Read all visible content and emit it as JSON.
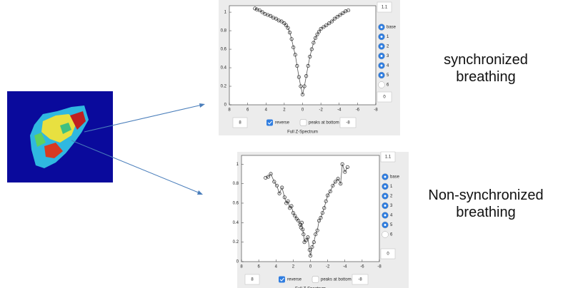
{
  "chart_data": [
    {
      "type": "line",
      "xlabel": "Full Z-Spectrum",
      "annotation": "synchronized breathing",
      "xlim": [
        8,
        -8
      ],
      "xticks": [
        8,
        6,
        4,
        2,
        0,
        -2,
        -4,
        -6,
        -8
      ],
      "ylim": [
        0,
        1.07
      ],
      "yticks": [
        0,
        0.2,
        0.4,
        0.6,
        0.8,
        1
      ],
      "color": "#555555",
      "x": [
        5.2,
        5.0,
        4.7,
        4.4,
        4.1,
        3.8,
        3.5,
        3.2,
        2.9,
        2.6,
        2.3,
        2.0,
        1.8,
        1.6,
        1.4,
        1.2,
        1.0,
        0.8,
        0.6,
        0.4,
        0.2,
        0,
        -0.2,
        -0.4,
        -0.6,
        -0.8,
        -1.0,
        -1.2,
        -1.4,
        -1.6,
        -1.8,
        -2.0,
        -2.3,
        -2.6,
        -2.9,
        -3.2,
        -3.5,
        -3.8,
        -4.1,
        -4.4,
        -4.7,
        -5.0
      ],
      "values": [
        1.04,
        1.03,
        1.02,
        1.0,
        0.98,
        0.97,
        0.96,
        0.94,
        0.93,
        0.91,
        0.9,
        0.88,
        0.86,
        0.83,
        0.78,
        0.71,
        0.62,
        0.54,
        0.42,
        0.3,
        0.2,
        0.11,
        0.2,
        0.31,
        0.42,
        0.52,
        0.6,
        0.67,
        0.72,
        0.76,
        0.79,
        0.82,
        0.84,
        0.86,
        0.88,
        0.9,
        0.93,
        0.95,
        0.97,
        0.99,
        1.01,
        1.02
      ]
    },
    {
      "type": "line",
      "xlabel": "Full Z-Spectrum",
      "annotation": "Non-synchronized breathing",
      "xlim": [
        8,
        -8
      ],
      "xticks": [
        8,
        6,
        4,
        2,
        0,
        -2,
        -4,
        -6,
        -8
      ],
      "ylim": [
        0,
        1.09
      ],
      "yticks": [
        0,
        0.2,
        0.4,
        0.6,
        0.8,
        1
      ],
      "color": "#555555",
      "x": [
        5.2,
        4.9,
        4.6,
        4.2,
        3.9,
        3.6,
        3.3,
        3.0,
        2.8,
        2.6,
        2.4,
        2.2,
        2.0,
        1.8,
        1.6,
        1.4,
        1.2,
        1.1,
        1.0,
        0.9,
        0.8,
        0.7,
        0.5,
        0.3,
        0.1,
        0,
        -0.2,
        -0.4,
        -0.6,
        -0.8,
        -1.0,
        -1.2,
        -1.4,
        -1.6,
        -1.8,
        -2.0,
        -2.3,
        -2.6,
        -2.9,
        -3.2,
        -3.5,
        -3.7,
        -4.0,
        -4.3
      ],
      "values": [
        0.86,
        0.87,
        0.9,
        0.82,
        0.78,
        0.7,
        0.76,
        0.66,
        0.6,
        0.62,
        0.55,
        0.57,
        0.5,
        0.47,
        0.44,
        0.42,
        0.38,
        0.35,
        0.4,
        0.33,
        0.28,
        0.2,
        0.22,
        0.25,
        0.12,
        0.06,
        0.15,
        0.2,
        0.28,
        0.32,
        0.42,
        0.45,
        0.5,
        0.55,
        0.62,
        0.68,
        0.72,
        0.78,
        0.82,
        0.85,
        0.8,
        1.0,
        0.92,
        0.97
      ]
    }
  ],
  "panels": [
    {
      "top_box": "1.1",
      "radios": [
        "base",
        "1",
        "2",
        "3",
        "4",
        "5",
        "6"
      ],
      "right_box": "0",
      "left_input": "8",
      "reverse": "reverse",
      "peaks": "peaks at bottom",
      "right_input": "-8"
    },
    {
      "top_box": "1.1",
      "radios": [
        "base",
        "1",
        "2",
        "3",
        "4",
        "5",
        "6"
      ],
      "right_box": "0",
      "left_input": "8",
      "reverse": "reverse",
      "peaks": "peaks at bottom",
      "right_input": "-8"
    }
  ]
}
